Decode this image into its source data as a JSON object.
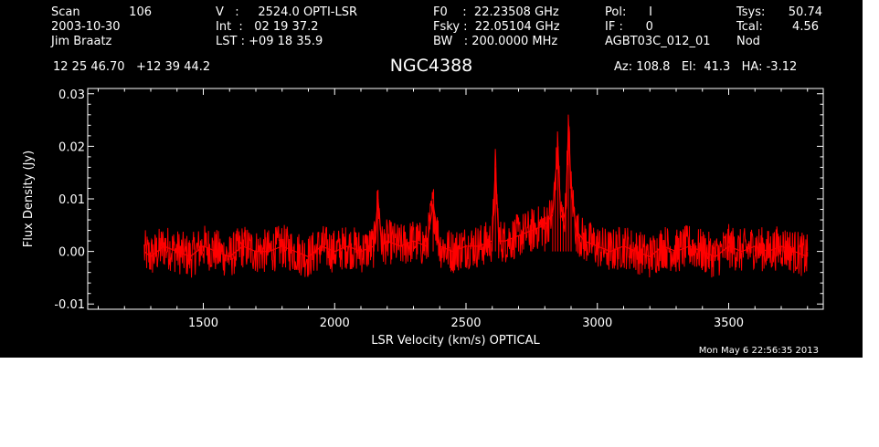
{
  "header": {
    "scan_label": "Scan",
    "scan_number": "106",
    "date": "2003-10-30",
    "observer": "Jim Braatz",
    "velocity": "V   :     2524.0 OPTI-LSR",
    "integration": "Int  :   02 19 37.2",
    "lst": "LST : +09 18 35.9",
    "f0": "F0    :  22.23508 GHz",
    "fsky": "Fsky :  22.05104 GHz",
    "bw": "BW   : 200.0000 MHz",
    "pol": "Pol:      I",
    "if": "IF :      0",
    "project": "AGBT03C_012_01",
    "tsys_label": "Tsys:",
    "tsys_value": "50.74",
    "tcal_label": "Tcal:",
    "tcal_value": "4.56",
    "procedure": "Nod",
    "coordinates": "12 25 46.70   +12 39 44.2",
    "source": "NGC4388",
    "pointing": "Az: 108.8   El:  41.3   HA: -3.12"
  },
  "timestamp": "Mon May  6 22:56:35 2013",
  "colors": {
    "background": "#000000",
    "axes": "#ffffff",
    "spectrum": "#ff0000"
  },
  "chart_data": {
    "type": "line",
    "title": "NGC4388",
    "xlabel": "LSR Velocity (km/s) OPTICAL",
    "ylabel": "Flux Density (Jy)",
    "xlim": [
      1060,
      3860
    ],
    "ylim": [
      -0.011,
      0.031
    ],
    "xticks": [
      1500,
      2000,
      2500,
      3000,
      3500
    ],
    "xtick_labels": [
      "1500",
      "2000",
      "2500",
      "3000",
      "3500"
    ],
    "yticks": [
      -0.01,
      0.0,
      0.01,
      0.02,
      0.03
    ],
    "ytick_labels": [
      "-0.01",
      "0.00",
      "0.01",
      "0.02",
      "0.03"
    ],
    "grid": false,
    "series": [
      {
        "color": "#ff0000",
        "x": [
          1275,
          1300,
          1350,
          1400,
          1450,
          1500,
          1550,
          1600,
          1650,
          1700,
          1750,
          1800,
          1850,
          1900,
          1950,
          2000,
          2050,
          2100,
          2150,
          2165,
          2180,
          2200,
          2250,
          2300,
          2350,
          2375,
          2400,
          2450,
          2500,
          2550,
          2600,
          2612,
          2625,
          2650,
          2700,
          2750,
          2800,
          2830,
          2840,
          2850,
          2860,
          2870,
          2880,
          2890,
          2900,
          2920,
          2950,
          3000,
          3050,
          3100,
          3150,
          3200,
          3250,
          3300,
          3350,
          3400,
          3450,
          3500,
          3550,
          3600,
          3650,
          3700,
          3750,
          3800
        ],
        "y": [
          0.0,
          -0.001,
          0.001,
          0.0,
          -0.001,
          0.001,
          0.0,
          -0.001,
          0.001,
          0.0,
          0.0,
          0.001,
          0.0,
          -0.001,
          0.001,
          0.0,
          0.001,
          0.0,
          0.001,
          0.01,
          0.001,
          0.002,
          0.001,
          0.002,
          0.001,
          0.009,
          0.001,
          0.0,
          0.001,
          0.001,
          0.002,
          0.016,
          0.002,
          0.002,
          0.003,
          0.004,
          0.005,
          0.007,
          0.014,
          0.02,
          0.007,
          0.006,
          0.008,
          0.024,
          0.012,
          0.004,
          0.002,
          0.001,
          0.0,
          0.001,
          0.0,
          -0.001,
          0.001,
          0.0,
          0.001,
          0.0,
          -0.001,
          0.001,
          0.0,
          0.001,
          0.0,
          0.001,
          0.0,
          -0.001
        ]
      }
    ]
  }
}
